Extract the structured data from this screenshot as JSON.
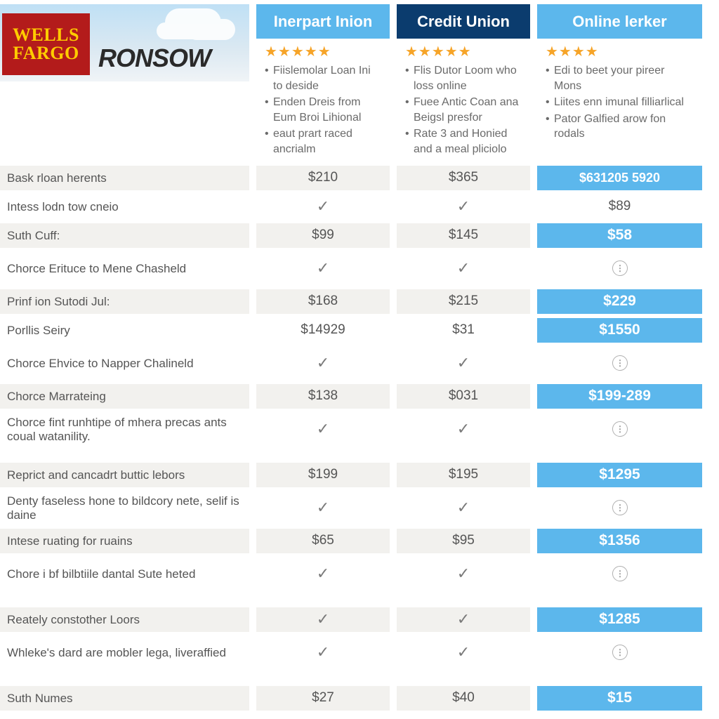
{
  "brand": {
    "wf_line1": "WELLS",
    "wf_line2": "FARGO",
    "sub": "RONSOW"
  },
  "cols": [
    {
      "name": "Inerpart Inion",
      "bg": "#5cb7ec",
      "stars": 5,
      "bullets": [
        "Fiislemolar Loan Ini to deside",
        "Enden Dreis from Eum Broi Lihional",
        "eaut prart raced ancrialm"
      ]
    },
    {
      "name": "Credit Union",
      "bg": "#0b3c6e",
      "stars": 5,
      "bullets": [
        "Flis Dutor Loom who loss online",
        "Fuee Antic Coan ana Beigsl presfor",
        "Rate 3 and Honied and a meal pliciolo"
      ]
    },
    {
      "name": "Online lerker",
      "bg": "#5cb7ec",
      "stars": 4,
      "bullets": [
        "Edi to beet your pireer Mons",
        "Liites enn imunal filliarlical",
        "Pator Galfied arow fon rodals"
      ]
    }
  ],
  "rows": [
    {
      "label": "Bask rloan herents",
      "shade": true,
      "tall": false,
      "c1": {
        "t": "text",
        "v": "$210"
      },
      "c2": {
        "t": "text",
        "v": "$365"
      },
      "c3": {
        "t": "hl",
        "v": "$631205 5920",
        "first": true
      }
    },
    {
      "label": "Intess lodn tow cneio",
      "shade": false,
      "c1": {
        "t": "check"
      },
      "c2": {
        "t": "check"
      },
      "c3": {
        "t": "text",
        "v": "$89"
      }
    },
    {
      "label": "Suth Cuff:",
      "shade": true,
      "c1": {
        "t": "text",
        "v": "$99"
      },
      "c2": {
        "t": "text",
        "v": "$145"
      },
      "c3": {
        "t": "hl",
        "v": "$58"
      }
    },
    {
      "label": "Chorce Erituce to Mene Chasheld",
      "shade": false,
      "tall": true,
      "c1": {
        "t": "check"
      },
      "c2": {
        "t": "check"
      },
      "c3": {
        "t": "info"
      }
    },
    {
      "label": "Prinf ion Sutodi Jul:",
      "shade": true,
      "c1": {
        "t": "text",
        "v": "$168"
      },
      "c2": {
        "t": "text",
        "v": "$215"
      },
      "c3": {
        "t": "hl",
        "v": "$229"
      }
    },
    {
      "label": "Porllis Seiry",
      "shade": false,
      "c1": {
        "t": "text",
        "v": "$14929"
      },
      "c2": {
        "t": "text",
        "v": "$31"
      },
      "c3": {
        "t": "hl",
        "v": "$1550"
      }
    },
    {
      "label": "Chorce Ehvice to Napper Chalineld",
      "shade": false,
      "tall": true,
      "c1": {
        "t": "check"
      },
      "c2": {
        "t": "check"
      },
      "c3": {
        "t": "info"
      }
    },
    {
      "label": "Chorce Marrateing",
      "shade": true,
      "c1": {
        "t": "text",
        "v": "$138"
      },
      "c2": {
        "t": "text",
        "v": "$031"
      },
      "c3": {
        "t": "hl",
        "v": "$199-289"
      }
    },
    {
      "label": "Chorce fint runhtipe of mhera precas ants coual watanility.",
      "shade": false,
      "tall": true,
      "c1": {
        "t": "check"
      },
      "c2": {
        "t": "check"
      },
      "c3": {
        "t": "info"
      }
    },
    {
      "gap": "big"
    },
    {
      "label": "Reprict and cancadrt buttic lebors",
      "shade": true,
      "c1": {
        "t": "text",
        "v": "$199"
      },
      "c2": {
        "t": "text",
        "v": "$195"
      },
      "c3": {
        "t": "hl",
        "v": "$1295"
      }
    },
    {
      "label": "Denty faseless hone to bildcory nete, selif is daine",
      "shade": false,
      "tall": true,
      "c1": {
        "t": "check"
      },
      "c2": {
        "t": "check"
      },
      "c3": {
        "t": "info"
      }
    },
    {
      "label": "Intese ruating for ruains",
      "shade": true,
      "c1": {
        "t": "text",
        "v": "$65"
      },
      "c2": {
        "t": "text",
        "v": "$95"
      },
      "c3": {
        "t": "hl",
        "v": "$1356"
      }
    },
    {
      "label": "Chore i bf bilbtiile dantal Sute heted",
      "shade": false,
      "tall": true,
      "c1": {
        "t": "check"
      },
      "c2": {
        "t": "check"
      },
      "c3": {
        "t": "info"
      }
    },
    {
      "gap": "big"
    },
    {
      "label": "Reately constother Loors",
      "shade": true,
      "c1": {
        "t": "check"
      },
      "c2": {
        "t": "check"
      },
      "c3": {
        "t": "hl",
        "v": "$1285"
      }
    },
    {
      "label": "Whleke's dard are mobler lega, liveraffied",
      "shade": false,
      "tall": true,
      "c1": {
        "t": "check"
      },
      "c2": {
        "t": "check"
      },
      "c3": {
        "t": "info"
      }
    },
    {
      "gap": "big"
    },
    {
      "label": "Suth Numes",
      "shade": true,
      "c1": {
        "t": "text",
        "v": "$27"
      },
      "c2": {
        "t": "text",
        "v": "$40"
      },
      "c3": {
        "t": "hl",
        "v": "$15"
      }
    }
  ]
}
